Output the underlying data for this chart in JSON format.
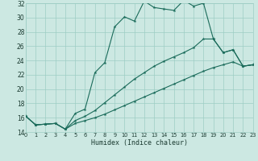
{
  "xlabel": "Humidex (Indice chaleur)",
  "bg_color": "#cce8e2",
  "grid_color": "#9ecdc4",
  "line_color": "#1a6b5a",
  "xlim": [
    0,
    23
  ],
  "ylim": [
    14,
    32
  ],
  "xticks": [
    0,
    1,
    2,
    3,
    4,
    5,
    6,
    7,
    8,
    9,
    10,
    11,
    12,
    13,
    14,
    15,
    16,
    17,
    18,
    19,
    20,
    21,
    22,
    23
  ],
  "yticks": [
    14,
    16,
    18,
    20,
    22,
    24,
    26,
    28,
    30,
    32
  ],
  "curve1_x": [
    0,
    1,
    2,
    3,
    4,
    5,
    6,
    7,
    8,
    9,
    10,
    11,
    12,
    13,
    14,
    15,
    16,
    17,
    18,
    19,
    20,
    21,
    22,
    23
  ],
  "curve1_y": [
    16.2,
    15.0,
    15.1,
    15.2,
    14.4,
    16.6,
    17.2,
    22.3,
    23.7,
    28.7,
    30.1,
    29.5,
    32.3,
    31.4,
    31.2,
    31.0,
    32.4,
    31.6,
    32.0,
    27.0,
    25.1,
    25.5,
    23.2,
    23.4
  ],
  "curve2_x": [
    0,
    1,
    2,
    3,
    4,
    5,
    6,
    7,
    8,
    9,
    10,
    11,
    12,
    13,
    14,
    15,
    16,
    17,
    18,
    19,
    20,
    21,
    22,
    23
  ],
  "curve2_y": [
    16.2,
    15.0,
    15.1,
    15.2,
    14.4,
    15.6,
    16.2,
    17.0,
    18.1,
    19.2,
    20.3,
    21.4,
    22.3,
    23.2,
    23.9,
    24.5,
    25.1,
    25.8,
    27.0,
    27.0,
    25.1,
    25.5,
    23.2,
    23.4
  ],
  "curve3_x": [
    0,
    1,
    2,
    3,
    4,
    5,
    6,
    7,
    8,
    9,
    10,
    11,
    12,
    13,
    14,
    15,
    16,
    17,
    18,
    19,
    20,
    21,
    22,
    23
  ],
  "curve3_y": [
    16.2,
    15.0,
    15.1,
    15.2,
    14.4,
    15.2,
    15.6,
    16.0,
    16.5,
    17.1,
    17.7,
    18.3,
    18.9,
    19.5,
    20.1,
    20.7,
    21.3,
    21.9,
    22.5,
    23.0,
    23.4,
    23.8,
    23.2,
    23.4
  ]
}
